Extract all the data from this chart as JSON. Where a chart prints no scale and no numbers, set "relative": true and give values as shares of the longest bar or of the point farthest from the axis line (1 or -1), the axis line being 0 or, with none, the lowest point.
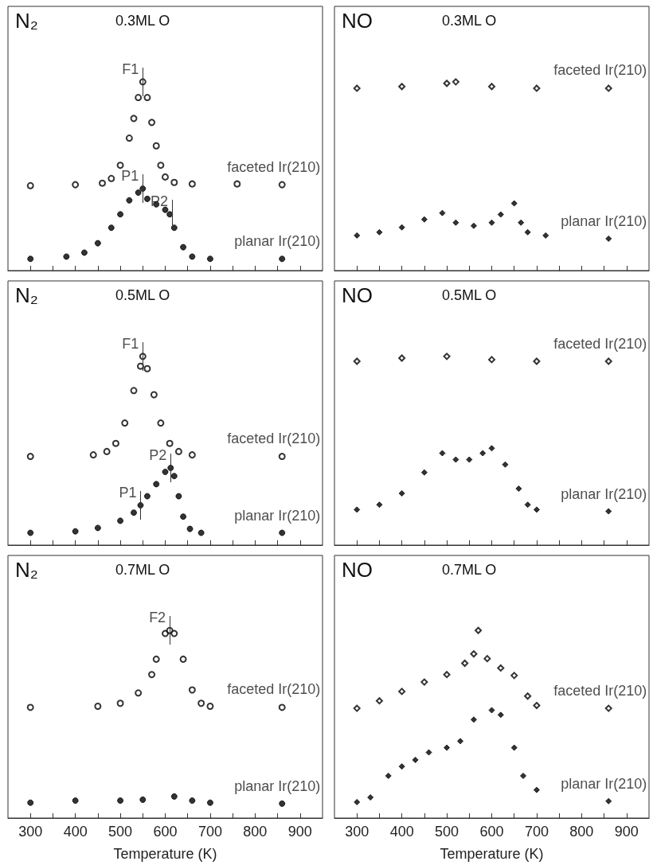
{
  "chart_data": [
    {
      "type": "scatter",
      "title": "N₂",
      "subtitle": "0.3ML O",
      "relative": true,
      "xlim": [
        250,
        950
      ],
      "xticks": [
        300,
        400,
        500,
        600,
        700,
        800,
        900
      ],
      "tick_labels": false,
      "marker": "circle",
      "series": [
        {
          "name": "faceted Ir(210)",
          "color": "#000000",
          "x": [
            300,
            400,
            460,
            480,
            500,
            520,
            530,
            540,
            550,
            560,
            570,
            580,
            590,
            600,
            620,
            660,
            760,
            860
          ],
          "values": [
            0.45,
            0.455,
            0.463,
            0.488,
            0.558,
            0.702,
            0.806,
            0.917,
            1.0,
            0.917,
            0.785,
            0.661,
            0.558,
            0.496,
            0.467,
            0.459,
            0.459,
            0.455
          ]
        },
        {
          "name": "planar Ir(210)",
          "color": "#000000",
          "x": [
            300,
            380,
            420,
            450,
            480,
            500,
            520,
            540,
            550,
            560,
            580,
            600,
            610,
            620,
            640,
            660,
            700,
            860
          ],
          "values": [
            0.062,
            0.074,
            0.095,
            0.145,
            0.227,
            0.298,
            0.372,
            0.413,
            0.434,
            0.38,
            0.351,
            0.322,
            0.298,
            0.227,
            0.124,
            0.074,
            0.062,
            0.062
          ]
        }
      ],
      "annotations": [
        {
          "text": "F1",
          "x": 550,
          "y": 1.0
        },
        {
          "text": "P1",
          "x": 550,
          "y": 0.434
        },
        {
          "text": "P2",
          "x": 615,
          "y": 0.298
        }
      ]
    },
    {
      "type": "scatter",
      "title": "NO",
      "subtitle": "0.3ML O",
      "relative": true,
      "xlim": [
        250,
        950
      ],
      "xticks": [
        300,
        400,
        500,
        600,
        700,
        800,
        900
      ],
      "tick_labels": false,
      "marker": "diamond",
      "series": [
        {
          "name": "faceted Ir(210)",
          "color": "#000000",
          "x": [
            300,
            400,
            500,
            520,
            600,
            700,
            860
          ],
          "values": [
            0.966,
            0.975,
            0.992,
            1.0,
            0.975,
            0.966,
            0.966
          ]
        },
        {
          "name": "planar Ir(210)",
          "color": "#000000",
          "x": [
            300,
            350,
            400,
            450,
            490,
            520,
            560,
            600,
            620,
            650,
            665,
            680,
            720,
            860
          ],
          "values": [
            0.186,
            0.203,
            0.229,
            0.271,
            0.305,
            0.254,
            0.237,
            0.254,
            0.297,
            0.356,
            0.254,
            0.203,
            0.186,
            0.169
          ]
        }
      ]
    },
    {
      "type": "scatter",
      "title": "N₂",
      "subtitle": "0.5ML O",
      "relative": true,
      "xlim": [
        250,
        950
      ],
      "xticks": [
        300,
        400,
        500,
        600,
        700,
        800,
        900
      ],
      "tick_labels": false,
      "marker": "circle",
      "series": [
        {
          "name": "faceted Ir(210)",
          "color": "#000000",
          "x": [
            300,
            440,
            470,
            490,
            510,
            530,
            545,
            550,
            560,
            575,
            590,
            610,
            630,
            660,
            860
          ],
          "values": [
            0.47,
            0.478,
            0.496,
            0.539,
            0.647,
            0.819,
            0.948,
            1.0,
            0.935,
            0.797,
            0.647,
            0.539,
            0.496,
            0.478,
            0.47
          ]
        },
        {
          "name": "planar Ir(210)",
          "color": "#000000",
          "x": [
            300,
            400,
            450,
            500,
            530,
            545,
            560,
            580,
            600,
            612,
            620,
            630,
            640,
            655,
            680,
            860
          ],
          "values": [
            0.065,
            0.073,
            0.091,
            0.129,
            0.172,
            0.211,
            0.259,
            0.323,
            0.388,
            0.409,
            0.366,
            0.259,
            0.151,
            0.086,
            0.065,
            0.065
          ]
        }
      ],
      "annotations": [
        {
          "text": "F1",
          "x": 550,
          "y": 1.0
        },
        {
          "text": "P1",
          "x": 545,
          "y": 0.211
        },
        {
          "text": "P2",
          "x": 612,
          "y": 0.409
        }
      ]
    },
    {
      "type": "scatter",
      "title": "NO",
      "subtitle": "0.5ML O",
      "relative": true,
      "xlim": [
        250,
        950
      ],
      "xticks": [
        300,
        400,
        500,
        600,
        700,
        800,
        900
      ],
      "tick_labels": false,
      "marker": "diamond",
      "series": [
        {
          "name": "faceted Ir(210)",
          "color": "#000000",
          "x": [
            300,
            400,
            500,
            600,
            700,
            860
          ],
          "values": [
            0.974,
            0.991,
            1.0,
            0.983,
            0.974,
            0.974
          ]
        },
        {
          "name": "planar Ir(210)",
          "color": "#000000",
          "x": [
            300,
            350,
            400,
            450,
            490,
            520,
            550,
            580,
            600,
            630,
            660,
            680,
            700,
            860
          ],
          "values": [
            0.188,
            0.214,
            0.274,
            0.385,
            0.487,
            0.453,
            0.453,
            0.487,
            0.513,
            0.427,
            0.299,
            0.214,
            0.188,
            0.179
          ]
        }
      ]
    },
    {
      "type": "scatter",
      "title": "N₂",
      "subtitle": "0.7ML O",
      "xlabel": "Temperature (K)",
      "relative": true,
      "xlim": [
        250,
        950
      ],
      "xticks": [
        300,
        400,
        500,
        600,
        700,
        800,
        900
      ],
      "tick_labels": "x",
      "marker": "circle",
      "series": [
        {
          "name": "faceted Ir(210)",
          "color": "#000000",
          "x": [
            300,
            450,
            500,
            540,
            570,
            580,
            600,
            610,
            620,
            640,
            660,
            680,
            700,
            860
          ],
          "values": [
            0.59,
            0.596,
            0.612,
            0.667,
            0.765,
            0.847,
            0.984,
            1.0,
            0.984,
            0.847,
            0.683,
            0.612,
            0.596,
            0.59
          ]
        },
        {
          "name": "planar Ir(210)",
          "color": "#000000",
          "x": [
            300,
            400,
            500,
            550,
            620,
            660,
            700,
            860
          ],
          "values": [
            0.082,
            0.093,
            0.093,
            0.098,
            0.115,
            0.093,
            0.082,
            0.077
          ]
        }
      ],
      "annotations": [
        {
          "text": "F2",
          "x": 610,
          "y": 1.0
        }
      ]
    },
    {
      "type": "scatter",
      "title": "NO",
      "subtitle": "0.7ML O",
      "xlabel": "Temperature (K)",
      "relative": true,
      "xlim": [
        250,
        950
      ],
      "xticks": [
        300,
        400,
        500,
        600,
        700,
        800,
        900
      ],
      "tick_labels": "x",
      "marker": "diamond",
      "series": [
        {
          "name": "faceted Ir(210)",
          "color": "#000000",
          "x": [
            300,
            350,
            400,
            450,
            500,
            540,
            560,
            570,
            590,
            620,
            650,
            680,
            700,
            860
          ],
          "values": [
            0.585,
            0.625,
            0.675,
            0.725,
            0.765,
            0.825,
            0.875,
            1.0,
            0.85,
            0.8,
            0.76,
            0.65,
            0.6,
            0.585
          ]
        },
        {
          "name": "planar Ir(210)",
          "color": "#000000",
          "x": [
            300,
            330,
            370,
            400,
            430,
            460,
            500,
            530,
            560,
            600,
            620,
            650,
            670,
            700,
            860
          ],
          "values": [
            0.085,
            0.11,
            0.225,
            0.275,
            0.31,
            0.35,
            0.375,
            0.41,
            0.525,
            0.575,
            0.55,
            0.375,
            0.225,
            0.15,
            0.09
          ]
        }
      ]
    }
  ]
}
